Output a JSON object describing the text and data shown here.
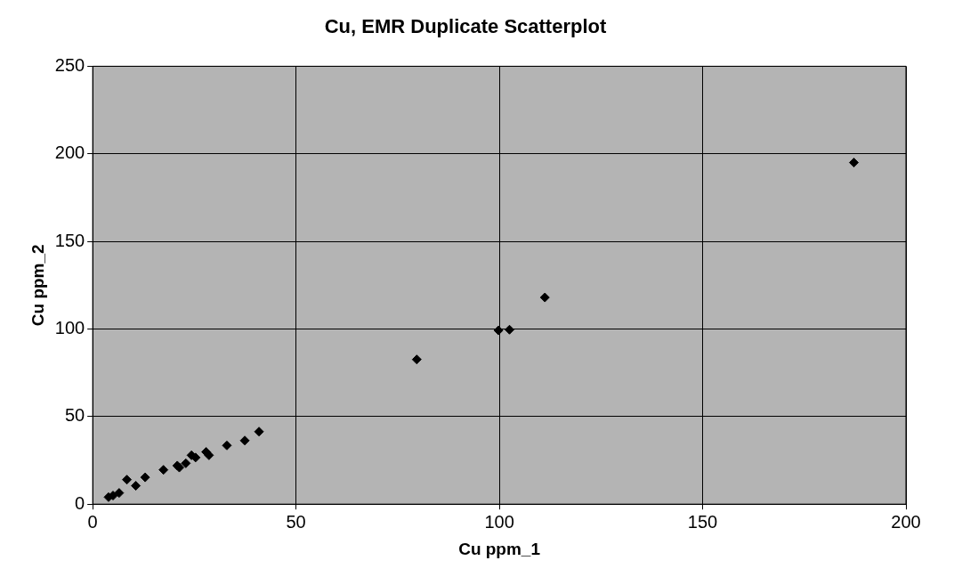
{
  "chart_data": {
    "type": "scatter",
    "title": "Cu, EMR Duplicate Scatterplot",
    "xlabel": "Cu ppm_1",
    "ylabel": "Cu ppm_2",
    "x": [
      3.9,
      5.0,
      6.5,
      8.4,
      10.6,
      12.9,
      17.4,
      20.8,
      21.3,
      22.9,
      24.3,
      25.3,
      27.9,
      28.6,
      33.0,
      37.4,
      40.9,
      79.7,
      99.8,
      102.5,
      111.2,
      187.2
    ],
    "series": [
      {
        "color": "#000000",
        "values": [
          4,
          4.9,
          6.4,
          14,
          10.5,
          15.3,
          19.6,
          22,
          20.9,
          23.3,
          27.9,
          26.6,
          29.8,
          27.9,
          33.5,
          36.3,
          41.4,
          82.6,
          99.2,
          99.6,
          118,
          195
        ]
      }
    ],
    "xlim": [
      0,
      200
    ],
    "xticks": [
      0,
      50,
      100,
      150,
      200
    ],
    "ylim": [
      0,
      250
    ],
    "yticks": [
      0,
      50,
      100,
      150,
      200,
      250
    ],
    "grid": true,
    "legend": false,
    "marker": "diamond"
  }
}
